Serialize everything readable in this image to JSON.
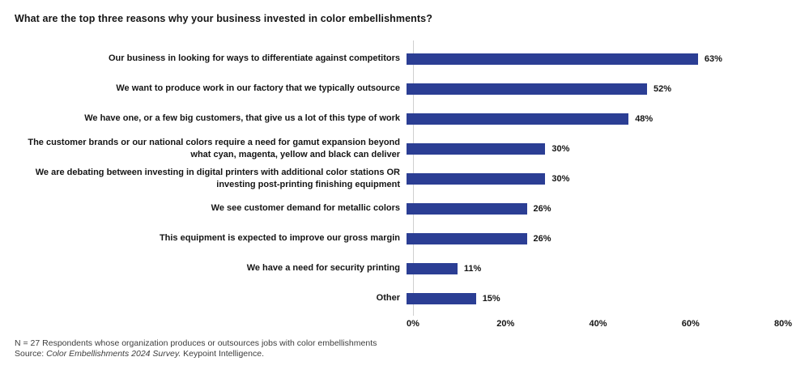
{
  "title": "What are the top three reasons why your business invested in color embellishments?",
  "chart_data": {
    "type": "bar",
    "orientation": "horizontal",
    "title": "What are the top three reasons why your business invested in color embellishments?",
    "categories": [
      "Our business in looking for ways to differentiate against competitors",
      "We want to produce work in our factory that we typically outsource",
      "We have one, or a few big customers, that give us a lot of this type of work",
      "The customer brands or our national colors require a need for gamut expansion beyond what cyan, magenta, yellow and black can deliver",
      "We are debating between investing in digital printers with additional color stations OR investing post-printing finishing equipment",
      "We see customer demand for metallic colors",
      "This equipment is expected to improve our gross margin",
      "We have a need for security printing",
      "Other"
    ],
    "values": [
      63,
      52,
      48,
      30,
      30,
      26,
      26,
      11,
      15
    ],
    "value_labels": [
      "63%",
      "52%",
      "48%",
      "30%",
      "30%",
      "26%",
      "26%",
      "11%",
      "15%"
    ],
    "xlabel": "",
    "ylabel": "",
    "xlim": [
      0,
      80
    ],
    "xticks": [
      "0%",
      "20%",
      "40%",
      "60%",
      "80%"
    ],
    "grid": false,
    "legend_position": "none",
    "bar_color": "#2B3E94",
    "axis_line_color": "#cfcfcf"
  },
  "footer": {
    "note": "N = 27 Respondents whose organization produces or outsources jobs with color embellishments",
    "source_prefix": "Source: ",
    "source_italic": "Color Embellishments 2024 Survey.",
    "source_suffix": " Keypoint Intelligence."
  }
}
